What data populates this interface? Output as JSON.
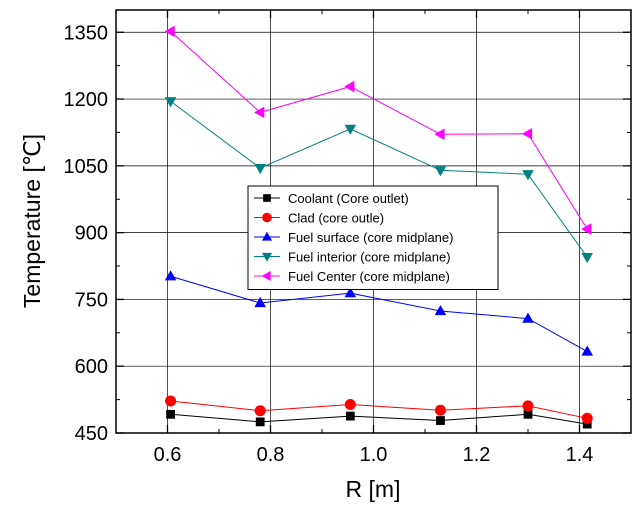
{
  "chart_data": {
    "type": "line",
    "xlabel": "R [m]",
    "ylabel": "Temperature [℃]",
    "xlim": [
      0.5,
      1.5
    ],
    "ylim": [
      450,
      1400
    ],
    "xticks": [
      0.6,
      0.8,
      1.0,
      1.2,
      1.4
    ],
    "xtick_labels": [
      "0.6",
      "0.8",
      "1.0",
      "1.2",
      "1.4"
    ],
    "yticks": [
      450,
      600,
      750,
      900,
      1050,
      1200,
      1350
    ],
    "ytick_labels": [
      "450",
      "600",
      "750",
      "900",
      "1050",
      "1200",
      "1350"
    ],
    "grid": true,
    "legend_position": "center-right",
    "x": [
      0.606,
      0.78,
      0.955,
      1.13,
      1.3,
      1.415
    ],
    "series": [
      {
        "name": "Coolant (Core outlet)",
        "marker": "square",
        "color": "#000000",
        "values": [
          492,
          475,
          488,
          478,
          492,
          470
        ]
      },
      {
        "name": "Clad (core outle)",
        "marker": "circle",
        "color": "#ff0000",
        "values": [
          522,
          500,
          514,
          501,
          511,
          483
        ]
      },
      {
        "name": "Fuel surface (core midplane)",
        "marker": "triangle-up",
        "color": "#0000ff",
        "values": [
          802,
          742,
          764,
          724,
          707,
          633
        ]
      },
      {
        "name": "Fuel interior (core midplane)",
        "marker": "triangle-down",
        "color": "#008080",
        "values": [
          1195,
          1045,
          1133,
          1040,
          1031,
          845
        ]
      },
      {
        "name": "Fuel Center (core midplane)",
        "marker": "triangle-left",
        "color": "#ff00ff",
        "values": [
          1352,
          1170,
          1228,
          1121,
          1122,
          908
        ]
      }
    ]
  }
}
